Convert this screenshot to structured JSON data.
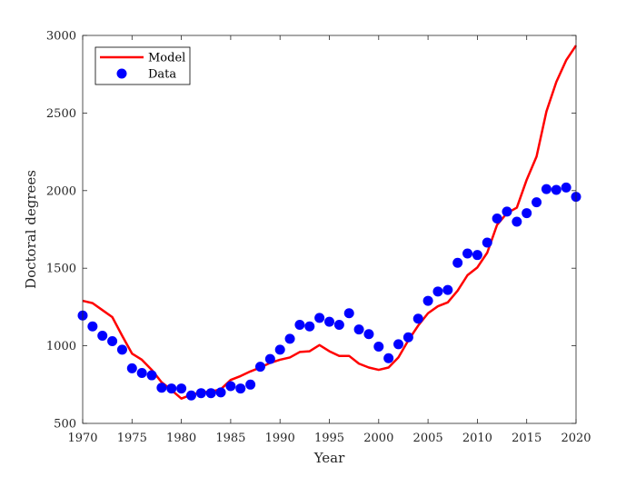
{
  "colors": {
    "model_line": "#ff0000",
    "data_points": "#0000ff",
    "axis": "#262626",
    "background": "#ffffff"
  },
  "chart_data": {
    "type": "line",
    "title": "",
    "xlabel": "Year",
    "ylabel": "Doctoral degrees",
    "xlim": [
      1970,
      2020
    ],
    "ylim": [
      500,
      3000
    ],
    "xticks": [
      1970,
      1975,
      1980,
      1985,
      1990,
      1995,
      2000,
      2005,
      2010,
      2015,
      2020
    ],
    "yticks": [
      500,
      1000,
      1500,
      2000,
      2500,
      3000
    ],
    "grid": false,
    "legend_position": "top-left",
    "series": [
      {
        "name": "Model",
        "style": "line",
        "x": [
          1970,
          1971,
          1972,
          1973,
          1974,
          1975,
          1976,
          1977,
          1978,
          1979,
          1980,
          1981,
          1982,
          1983,
          1984,
          1985,
          1986,
          1987,
          1988,
          1989,
          1990,
          1991,
          1992,
          1993,
          1994,
          1995,
          1996,
          1997,
          1998,
          1999,
          2000,
          2001,
          2002,
          2003,
          2004,
          2005,
          2006,
          2007,
          2008,
          2009,
          2010,
          2011,
          2012,
          2013,
          2014,
          2015,
          2016,
          2017,
          2018,
          2019,
          2020
        ],
        "values": [
          1290,
          1275,
          1230,
          1185,
          1065,
          950,
          910,
          845,
          765,
          715,
          660,
          685,
          700,
          705,
          720,
          780,
          805,
          835,
          860,
          890,
          910,
          925,
          960,
          965,
          1005,
          965,
          935,
          935,
          885,
          860,
          845,
          860,
          925,
          1035,
          1130,
          1210,
          1255,
          1280,
          1355,
          1455,
          1505,
          1600,
          1780,
          1855,
          1890,
          2070,
          2220,
          2510,
          2700,
          2840,
          2935
        ]
      },
      {
        "name": "Data",
        "style": "scatter",
        "x": [
          1970,
          1971,
          1972,
          1973,
          1974,
          1975,
          1976,
          1977,
          1978,
          1979,
          1980,
          1981,
          1982,
          1983,
          1984,
          1985,
          1986,
          1987,
          1988,
          1989,
          1990,
          1991,
          1992,
          1993,
          1994,
          1995,
          1996,
          1997,
          1998,
          1999,
          2000,
          2001,
          2002,
          2003,
          2004,
          2005,
          2006,
          2007,
          2008,
          2009,
          2010,
          2011,
          2012,
          2013,
          2014,
          2015,
          2016,
          2017,
          2018,
          2019,
          2020
        ],
        "values": [
          1195,
          1125,
          1065,
          1030,
          975,
          855,
          825,
          810,
          730,
          725,
          725,
          680,
          695,
          695,
          700,
          740,
          725,
          750,
          865,
          915,
          975,
          1045,
          1135,
          1125,
          1180,
          1155,
          1135,
          1210,
          1105,
          1075,
          995,
          920,
          1010,
          1055,
          1175,
          1290,
          1350,
          1360,
          1535,
          1595,
          1585,
          1665,
          1820,
          1865,
          1800,
          1855,
          1925,
          2010,
          2005,
          2020,
          1960
        ]
      }
    ]
  }
}
